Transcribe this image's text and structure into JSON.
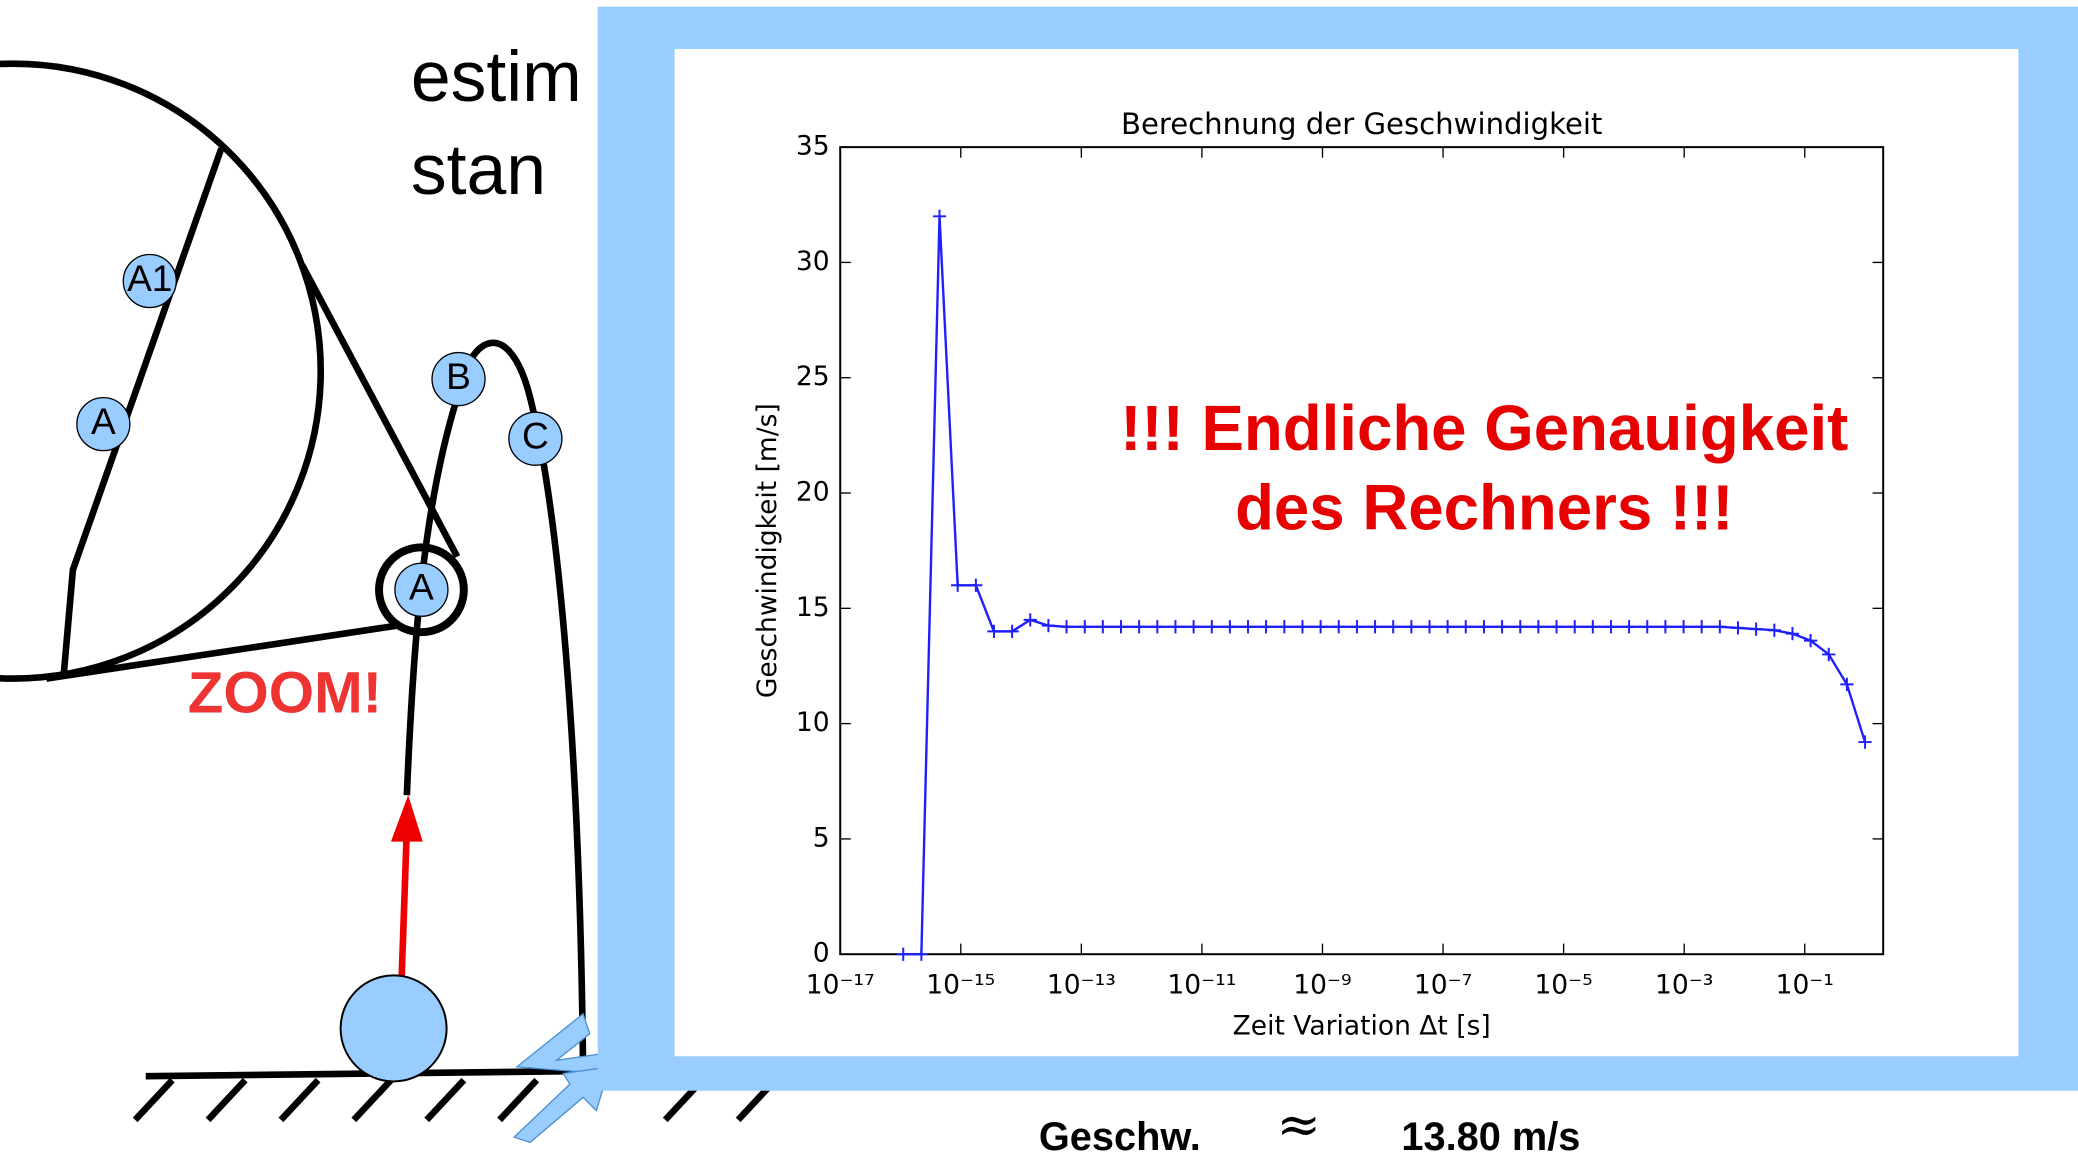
{
  "slide": {
    "heading_line1": "estim",
    "heading_line2": "stan",
    "points": [
      "A1",
      "A",
      "B",
      "C",
      "A"
    ],
    "zoom": "ZOOM!",
    "result_label": "Geschw.",
    "approx": "≈",
    "result_value": "13.80 m/s"
  },
  "chart_data": {
    "type": "line",
    "title": "Berechnung der Geschwindigkeit",
    "xlabel": "Zeit Variation Δt [s]",
    "ylabel": "Geschwindigkeit [m/s]",
    "annotation": [
      "!!! Endliche Genauigkeit",
      "des Rechners !!!"
    ],
    "xscale": "log",
    "xlim": [
      1e-17,
      2
    ],
    "ylim": [
      0,
      35
    ],
    "xticks": [
      {
        "value": 1e-17,
        "label": "10⁻¹⁷"
      },
      {
        "value": 1e-15,
        "label": "10⁻¹⁵"
      },
      {
        "value": 1e-13,
        "label": "10⁻¹³"
      },
      {
        "value": 1e-11,
        "label": "10⁻¹¹"
      },
      {
        "value": 1e-09,
        "label": "10⁻⁹"
      },
      {
        "value": 1e-07,
        "label": "10⁻⁷"
      },
      {
        "value": 1e-05,
        "label": "10⁻⁵"
      },
      {
        "value": 0.001,
        "label": "10⁻³"
      },
      {
        "value": 0.1,
        "label": "10⁻¹"
      }
    ],
    "yticks": [
      0,
      5,
      10,
      15,
      20,
      25,
      30,
      35
    ],
    "x": [
      1.11e-16,
      2.22e-16,
      4.44e-16,
      8.88e-16,
      1.78e-15,
      3.55e-15,
      7.11e-15,
      1.42e-14,
      2.84e-14,
      5.68e-14,
      1.14e-13,
      2.27e-13,
      4.55e-13,
      9.09e-13,
      1.82e-12,
      3.64e-12,
      7.28e-12,
      1.46e-11,
      2.91e-11,
      5.82e-11,
      1.16e-10,
      2.33e-10,
      4.66e-10,
      9.31e-10,
      1.86e-09,
      3.73e-09,
      7.45e-09,
      1.49e-08,
      2.98e-08,
      5.96e-08,
      1.19e-07,
      2.38e-07,
      4.77e-07,
      9.54e-07,
      1.91e-06,
      3.81e-06,
      7.63e-06,
      1.53e-05,
      3.05e-05,
      6.1e-05,
      0.000122,
      0.000244,
      0.000488,
      0.000977,
      0.00195,
      0.00391,
      0.00781,
      0.0156,
      0.0313,
      0.0625,
      0.125,
      0.25,
      0.5,
      1
    ],
    "series": [
      {
        "color": "#1f1fff",
        "values": [
          0,
          0,
          32,
          16,
          16,
          14,
          14,
          14.5,
          14.25,
          14.2,
          14.2,
          14.2,
          14.2,
          14.2,
          14.2,
          14.2,
          14.2,
          14.2,
          14.2,
          14.2,
          14.2,
          14.2,
          14.2,
          14.2,
          14.2,
          14.2,
          14.2,
          14.2,
          14.2,
          14.2,
          14.2,
          14.2,
          14.2,
          14.2,
          14.2,
          14.2,
          14.2,
          14.2,
          14.2,
          14.2,
          14.2,
          14.2,
          14.2,
          14.2,
          14.2,
          14.2,
          14.15,
          14.1,
          14.05,
          13.9,
          13.6,
          13.0,
          11.7,
          9.2
        ]
      }
    ]
  }
}
